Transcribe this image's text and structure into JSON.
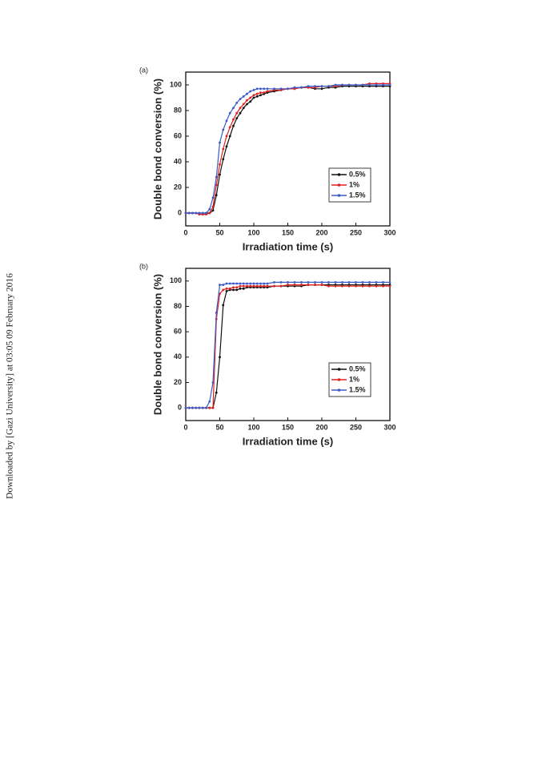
{
  "margin_note": "Downloaded by [Gazi University] at 03:05 09 February 2016",
  "chart_data": [
    {
      "type": "line",
      "panel_label": "(a)",
      "xlabel": "Irradiation time (s)",
      "ylabel": "Double bond conversion (%)",
      "x": [
        0,
        5,
        10,
        15,
        20,
        25,
        30,
        35,
        40,
        45,
        50,
        55,
        60,
        65,
        70,
        75,
        80,
        85,
        90,
        95,
        100,
        105,
        110,
        115,
        120,
        130,
        140,
        150,
        160,
        170,
        180,
        190,
        200,
        210,
        220,
        230,
        240,
        250,
        260,
        270,
        280,
        290,
        300
      ],
      "series": [
        {
          "name": "0.5%",
          "color": "#111111",
          "values": [
            0,
            0,
            0,
            0,
            0,
            0,
            0,
            0,
            2,
            14,
            30,
            42,
            52,
            60,
            68,
            74,
            78,
            82,
            85,
            87,
            90,
            91,
            92,
            93,
            94,
            95,
            96,
            97,
            97,
            98,
            98,
            97,
            97,
            98,
            98,
            99,
            99,
            99,
            99,
            99,
            99,
            99,
            99
          ]
        },
        {
          "name": "1%",
          "color": "#e0201f",
          "values": [
            0,
            0,
            0,
            0,
            -1,
            -1,
            -1,
            0,
            5,
            22,
            38,
            50,
            60,
            67,
            73,
            78,
            82,
            85,
            88,
            90,
            92,
            93,
            94,
            94,
            95,
            96,
            96,
            97,
            97,
            98,
            98,
            98,
            99,
            99,
            99,
            100,
            100,
            100,
            100,
            101,
            101,
            101,
            101
          ]
        },
        {
          "name": "1.5%",
          "color": "#3a5bc8",
          "values": [
            0,
            0,
            0,
            0,
            0,
            0,
            0,
            3,
            12,
            28,
            55,
            65,
            72,
            78,
            82,
            86,
            89,
            91,
            93,
            95,
            96,
            97,
            97,
            97,
            97,
            97,
            97,
            97,
            98,
            98,
            99,
            99,
            99,
            99,
            100,
            100,
            100,
            100,
            100,
            100,
            100,
            100,
            100
          ]
        }
      ],
      "xlim": [
        0,
        300
      ],
      "ylim": [
        -10,
        110
      ],
      "xticks": [
        0,
        50,
        100,
        150,
        200,
        250,
        300
      ],
      "yticks": [
        0,
        20,
        40,
        60,
        80,
        100
      ],
      "grid": false,
      "legend": "lower right"
    },
    {
      "type": "line",
      "panel_label": "(b)",
      "xlabel": "Irradiation time (s)",
      "ylabel": "Double bond conversion (%)",
      "x": [
        0,
        5,
        10,
        15,
        20,
        25,
        30,
        35,
        40,
        45,
        50,
        55,
        60,
        65,
        70,
        75,
        80,
        85,
        90,
        95,
        100,
        105,
        110,
        115,
        120,
        130,
        140,
        150,
        160,
        170,
        180,
        190,
        200,
        210,
        220,
        230,
        240,
        250,
        260,
        270,
        280,
        290,
        300
      ],
      "series": [
        {
          "name": "0.5%",
          "color": "#111111",
          "values": [
            0,
            0,
            0,
            0,
            0,
            0,
            0,
            0,
            0,
            12,
            40,
            81,
            92,
            93,
            93,
            93,
            94,
            94,
            95,
            95,
            95,
            95,
            95,
            95,
            95,
            96,
            96,
            96,
            96,
            96,
            97,
            97,
            97,
            97,
            97,
            97,
            97,
            97,
            97,
            97,
            97,
            97,
            97
          ]
        },
        {
          "name": "1%",
          "color": "#e0201f",
          "values": [
            0,
            0,
            0,
            0,
            0,
            0,
            0,
            0,
            0,
            70,
            90,
            93,
            94,
            94,
            95,
            95,
            96,
            96,
            96,
            96,
            96,
            96,
            96,
            96,
            96,
            96,
            96,
            97,
            97,
            97,
            97,
            97,
            97,
            96,
            96,
            96,
            96,
            96,
            96,
            96,
            96,
            96,
            96
          ]
        },
        {
          "name": "1.5%",
          "color": "#3a5bc8",
          "values": [
            0,
            0,
            0,
            0,
            0,
            0,
            0,
            5,
            20,
            75,
            97,
            97,
            98,
            98,
            98,
            98,
            98,
            98,
            98,
            98,
            98,
            98,
            98,
            98,
            98,
            99,
            99,
            99,
            99,
            99,
            99,
            99,
            99,
            99,
            99,
            99,
            99,
            99,
            99,
            99,
            99,
            99,
            99
          ]
        }
      ],
      "xlim": [
        0,
        300
      ],
      "ylim": [
        -10,
        110
      ],
      "xticks": [
        0,
        50,
        100,
        150,
        200,
        250,
        300
      ],
      "yticks": [
        0,
        20,
        40,
        60,
        80,
        100
      ],
      "grid": false,
      "legend": "lower right"
    }
  ]
}
